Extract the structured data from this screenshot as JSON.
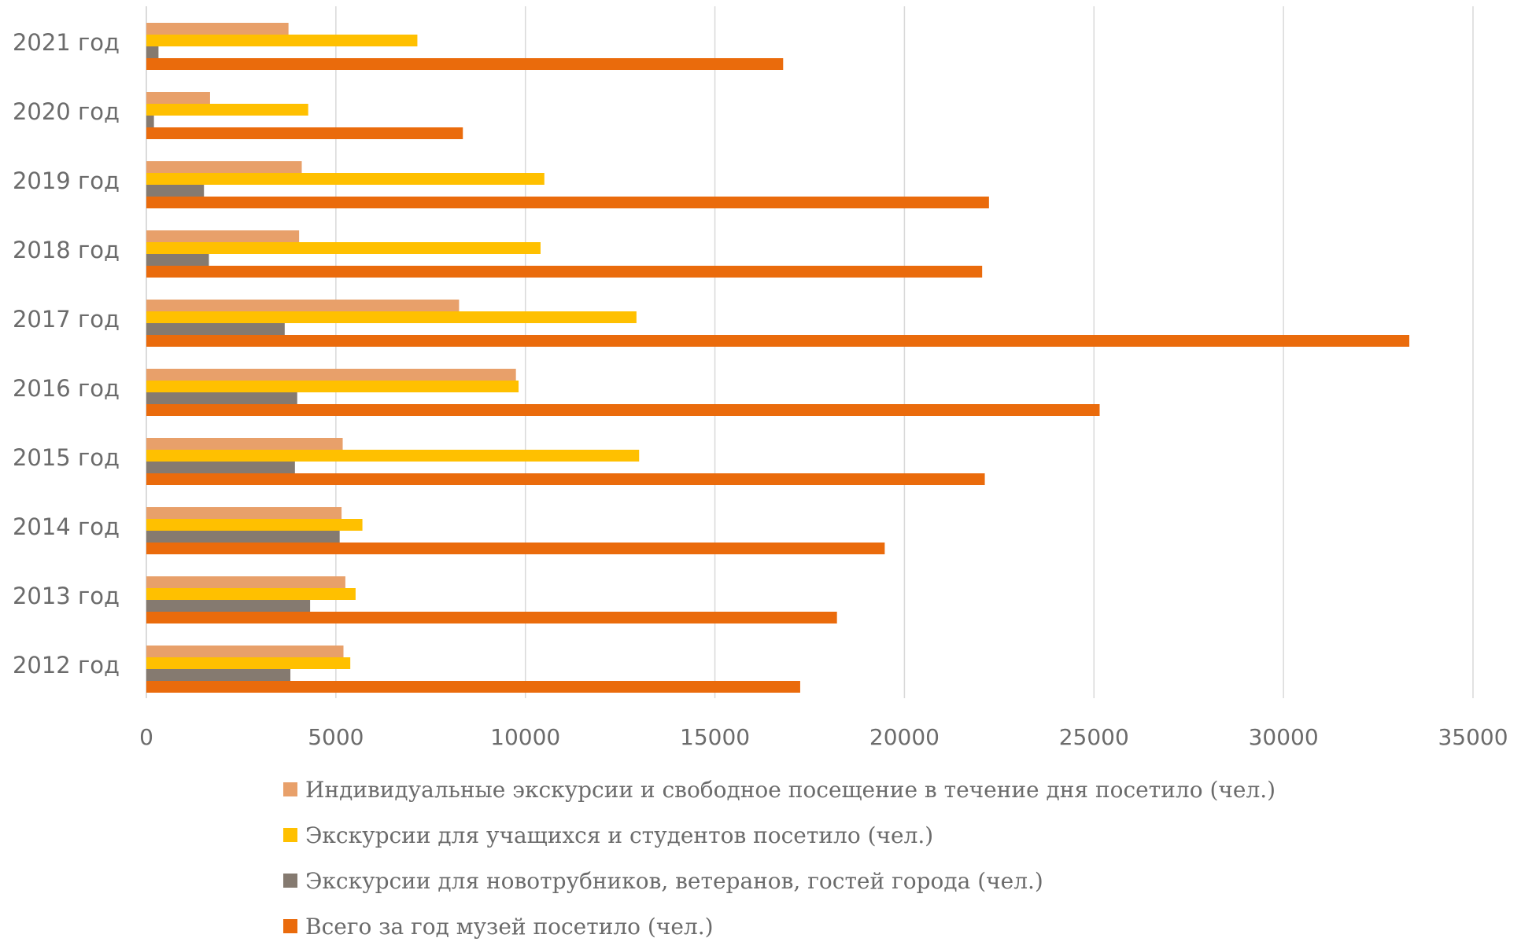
{
  "chart_data": {
    "type": "bar",
    "orientation": "horizontal",
    "categories": [
      "2021 год",
      "2020 год",
      "2019 год",
      "2018 год",
      "2017 год",
      "2016 год",
      "2015 год",
      "2014 год",
      "2013 год",
      "2012 год"
    ],
    "series": [
      {
        "name": "Индивидуальные экскурсии и свободное посещение в течение дня посетило (чел.)",
        "color": "#E8A06A",
        "values": [
          3750,
          1680,
          4100,
          4030,
          8250,
          9750,
          5180,
          5150,
          5250,
          5200
        ]
      },
      {
        "name": "Экскурсии для учащихся и студентов посетило (чел.)",
        "color": "#FFC000",
        "values": [
          7150,
          4270,
          10500,
          10400,
          12930,
          9820,
          13000,
          5700,
          5520,
          5380
        ]
      },
      {
        "name": "Экскурсии для новотрубников, ветеранов, гостей города (чел.)",
        "color": "#857A70",
        "values": [
          320,
          200,
          1520,
          1650,
          3650,
          3980,
          3920,
          5100,
          4320,
          3800
        ]
      },
      {
        "name": "Всего за год музей посетило (чел.)",
        "color": "#EA6B0C",
        "values": [
          16800,
          8350,
          22230,
          22050,
          33320,
          25150,
          22120,
          19480,
          18220,
          17250
        ]
      }
    ],
    "xlim": [
      0,
      35000
    ],
    "xticks": [
      "0",
      "5000",
      "10000",
      "15000",
      "20000",
      "25000",
      "30000",
      "35000"
    ],
    "grid": true,
    "legend_position": "bottom"
  }
}
